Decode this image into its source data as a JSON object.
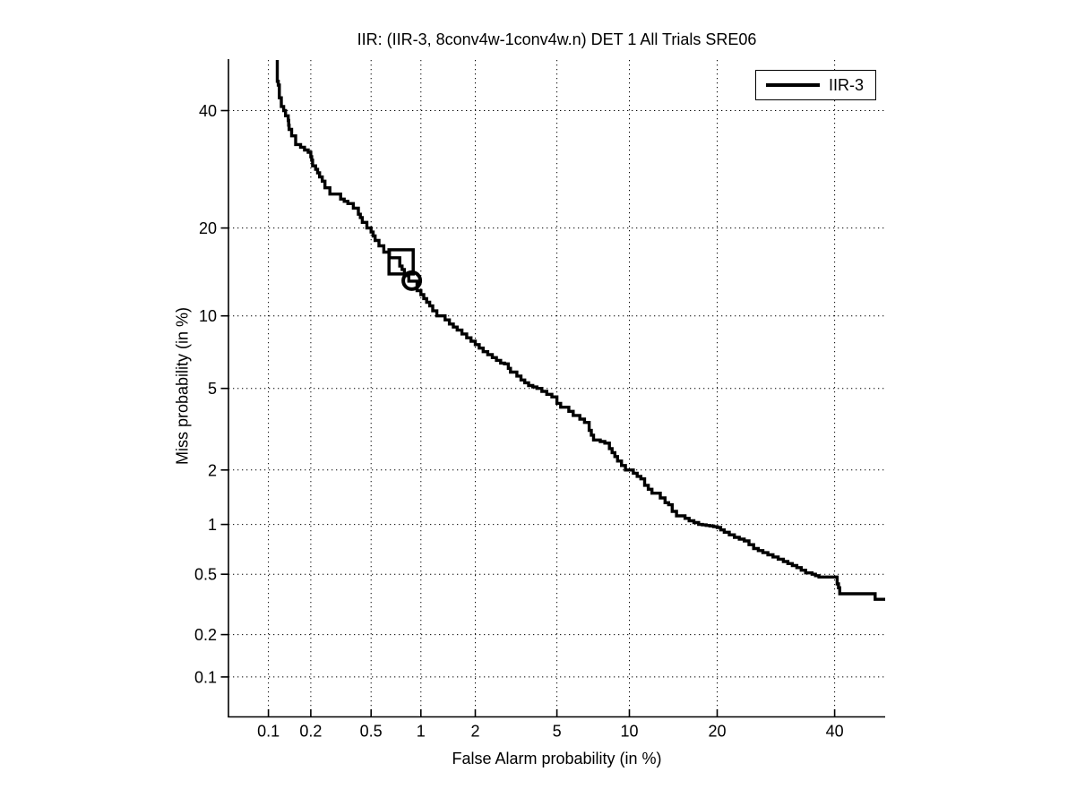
{
  "chart_data": {
    "type": "line",
    "subtype": "DET-curve",
    "scale": "normal-deviate (probit) on both axes",
    "title": "IIR: (IIR-3, 8conv4w-1conv4w.n) DET 1 All Trials SRE06",
    "xlabel": "False Alarm probability (in %)",
    "ylabel": "Miss probability (in %)",
    "xlim_percent": [
      0.05,
      50
    ],
    "ylim_percent": [
      0.05,
      50
    ],
    "grid": "dotted",
    "grid_color": "#000000",
    "background_color": "#ffffff",
    "axis_color": "#000000",
    "x_ticks": [
      {
        "value": 0.1,
        "label": "0.1"
      },
      {
        "value": 0.2,
        "label": "0.2"
      },
      {
        "value": 0.5,
        "label": "0.5"
      },
      {
        "value": 1,
        "label": "1"
      },
      {
        "value": 2,
        "label": "2"
      },
      {
        "value": 5,
        "label": "5"
      },
      {
        "value": 10,
        "label": "10"
      },
      {
        "value": 20,
        "label": "20"
      },
      {
        "value": 40,
        "label": "40"
      }
    ],
    "y_ticks": [
      {
        "value": 40,
        "label": "40"
      },
      {
        "value": 20,
        "label": "20"
      },
      {
        "value": 10,
        "label": "10"
      },
      {
        "value": 5,
        "label": "5"
      },
      {
        "value": 2,
        "label": "2"
      },
      {
        "value": 1,
        "label": "1"
      },
      {
        "value": 0.5,
        "label": "0.5"
      },
      {
        "value": 0.2,
        "label": "0.2"
      },
      {
        "value": 0.1,
        "label": "0.1"
      }
    ],
    "legend": {
      "position": "top-right",
      "entries": [
        {
          "label": "IIR-3",
          "color": "#000000",
          "line_width": 4
        }
      ]
    },
    "series": [
      {
        "name": "IIR-3",
        "color": "#000000",
        "line_width": 3.4,
        "points_fa_miss_percent": [
          [
            0.116,
            50
          ],
          [
            0.116,
            46.5
          ],
          [
            0.12,
            45
          ],
          [
            0.12,
            43
          ],
          [
            0.124,
            42.5
          ],
          [
            0.124,
            40.8
          ],
          [
            0.129,
            40.4
          ],
          [
            0.133,
            40
          ],
          [
            0.139,
            39
          ],
          [
            0.141,
            37.2
          ],
          [
            0.147,
            36.4
          ],
          [
            0.15,
            35.2
          ],
          [
            0.157,
            34.8
          ],
          [
            0.161,
            33.6
          ],
          [
            0.17,
            33.1
          ],
          [
            0.181,
            32.6
          ],
          [
            0.192,
            32.2
          ],
          [
            0.2,
            32
          ],
          [
            0.206,
            30.8
          ],
          [
            0.216,
            29.8
          ],
          [
            0.23,
            28.6
          ],
          [
            0.25,
            27.2
          ],
          [
            0.27,
            26.1
          ],
          [
            0.29,
            25.1
          ],
          [
            0.318,
            24.3
          ],
          [
            0.355,
            23.6
          ],
          [
            0.385,
            22.9
          ],
          [
            0.415,
            22.5
          ],
          [
            0.44,
            21.5
          ],
          [
            0.47,
            20.8
          ],
          [
            0.5,
            20
          ],
          [
            0.53,
            18.9
          ],
          [
            0.56,
            18.3
          ],
          [
            0.6,
            17.6
          ],
          [
            0.65,
            16.8
          ],
          [
            0.7,
            16.1
          ],
          [
            0.75,
            15.5
          ],
          [
            0.8,
            14.7
          ],
          [
            0.85,
            14
          ],
          [
            0.9,
            13.4
          ],
          [
            0.95,
            13.1
          ],
          [
            1,
            12.4
          ],
          [
            1.08,
            11.6
          ],
          [
            1.17,
            10.9
          ],
          [
            1.3,
            10
          ],
          [
            1.45,
            9.3
          ],
          [
            1.6,
            8.8
          ],
          [
            1.8,
            8.2
          ],
          [
            2,
            7.7
          ],
          [
            2.2,
            7.2
          ],
          [
            2.45,
            6.8
          ],
          [
            2.7,
            6.45
          ],
          [
            2.95,
            6.35
          ],
          [
            3.1,
            5.9
          ],
          [
            3.4,
            5.45
          ],
          [
            3.7,
            5.15
          ],
          [
            4.05,
            5
          ],
          [
            4.5,
            4.7
          ],
          [
            5,
            4.45
          ],
          [
            5.4,
            4.1
          ],
          [
            5.9,
            3.75
          ],
          [
            6.3,
            3.6
          ],
          [
            6.9,
            3.35
          ],
          [
            7.35,
            2.85
          ],
          [
            8.35,
            2.7
          ],
          [
            9,
            2.35
          ],
          [
            10,
            2
          ],
          [
            10.7,
            1.85
          ],
          [
            11.4,
            1.74
          ],
          [
            12.5,
            1.5
          ],
          [
            13.5,
            1.33
          ],
          [
            14.3,
            1.26
          ],
          [
            15.3,
            1.12
          ],
          [
            16.3,
            1.05
          ],
          [
            17.5,
            1
          ],
          [
            19,
            0.98
          ],
          [
            20,
            0.96
          ],
          [
            21,
            0.9
          ],
          [
            22.5,
            0.84
          ],
          [
            24,
            0.8
          ],
          [
            25.5,
            0.72
          ],
          [
            27,
            0.68
          ],
          [
            28.7,
            0.64
          ],
          [
            30.5,
            0.6
          ],
          [
            32.9,
            0.55
          ],
          [
            34.5,
            0.51
          ],
          [
            35.7,
            0.5
          ],
          [
            37,
            0.48
          ],
          [
            39.5,
            0.48
          ],
          [
            40.5,
            0.46
          ],
          [
            41,
            0.41
          ],
          [
            41.5,
            0.375
          ],
          [
            48,
            0.375
          ],
          [
            48.5,
            0.345
          ],
          [
            50,
            0.345
          ]
        ]
      }
    ],
    "markers": [
      {
        "shape": "square",
        "fa_percent": 0.764,
        "miss_percent": 15.6,
        "size": 27,
        "stroke_width": 3.5,
        "color": "#000000"
      },
      {
        "shape": "circle",
        "fa_percent": 0.885,
        "miss_percent": 13.45,
        "radius": 9.5,
        "stroke_width": 4,
        "color": "#000000"
      }
    ]
  }
}
